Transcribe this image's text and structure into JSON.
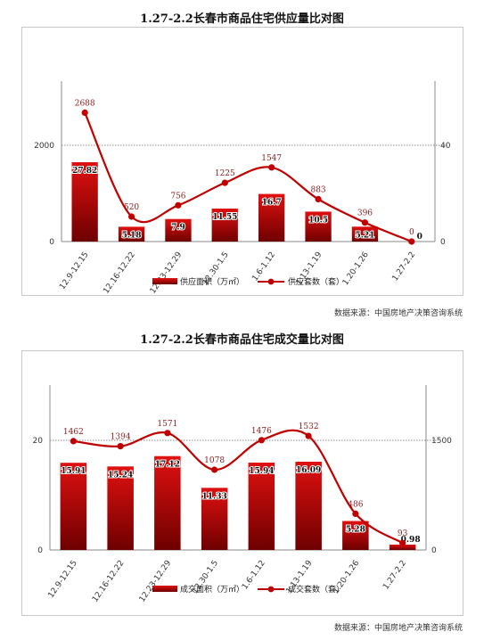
{
  "source_text": "数据来源：中国房地产决策咨询系统",
  "chart_data": [
    {
      "type": "bar",
      "title": "1.27-2.2长春市商品住宅供应量比对图",
      "categories": [
        "12.9-12.15",
        "12.16-12.22",
        "12.23-12.29",
        "12.30-1.5",
        "1.6-1.12",
        "1.13-1.19",
        "1.20-1.26",
        "1.27-2.2"
      ],
      "series": [
        {
          "name": "供应面积（万㎡）",
          "kind": "bar",
          "axis": "left",
          "values": [
            27.82,
            5.18,
            7.9,
            11.55,
            16.7,
            10.5,
            5.21,
            0
          ],
          "labels": [
            "27.82",
            "5.18",
            "7.9",
            "11.55",
            "16.7",
            "10.5",
            "5.21",
            "0"
          ]
        },
        {
          "name": "供应套数（套）",
          "kind": "line",
          "axis": "right",
          "values": [
            2688,
            520,
            756,
            1225,
            1547,
            883,
            396,
            0
          ],
          "labels": [
            "2688",
            "520",
            "756",
            "1225",
            "1547",
            "883",
            "396",
            "0"
          ]
        }
      ],
      "left_axis": {
        "ticks": [
          "0",
          "2000"
        ]
      },
      "right_axis": {
        "ticks": [
          "0",
          "40"
        ]
      },
      "colors": {
        "bar": "#c00000",
        "line": "#c00000"
      }
    },
    {
      "type": "bar",
      "title": "1.27-2.2长春市商品住宅成交量比对图",
      "categories": [
        "12.9-12.15",
        "12.16-12.22",
        "12.23-12.29",
        "12.30-1.5",
        "1.6-1.12",
        "1.13-1.19",
        "1.20-1.26",
        "1.27-2.2"
      ],
      "series": [
        {
          "name": "成交面积（万㎡）",
          "kind": "bar",
          "axis": "left",
          "values": [
            15.91,
            15.24,
            17.12,
            11.33,
            15.94,
            16.09,
            5.28,
            0.98
          ],
          "labels": [
            "15.91",
            "15.24",
            "17.12",
            "11.33",
            "15.94",
            "16.09",
            "5.28",
            "0.98"
          ]
        },
        {
          "name": "成交套数（套）",
          "kind": "line",
          "axis": "right",
          "values": [
            1462,
            1394,
            1571,
            1078,
            1476,
            1532,
            486,
            93
          ],
          "labels": [
            "1462",
            "1394",
            "1571",
            "1078",
            "1476",
            "1532",
            "486",
            "93"
          ]
        }
      ],
      "left_axis": {
        "ticks": [
          "0",
          "20"
        ]
      },
      "right_axis": {
        "ticks": [
          "0",
          "1500"
        ]
      },
      "colors": {
        "bar": "#c00000",
        "line": "#c00000"
      }
    }
  ]
}
